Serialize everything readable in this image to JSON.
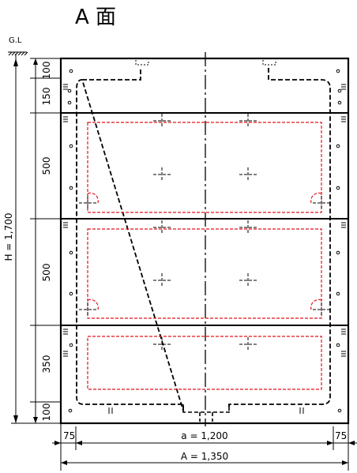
{
  "title": "A 面",
  "gl_label": "G.L",
  "height_dims": [
    "100",
    "150",
    "500",
    "500",
    "350",
    "100"
  ],
  "total_height": "H = 1,700",
  "width_side": "75",
  "inner_width": "a = 1,200",
  "total_width": "A = 1,350",
  "colors": {
    "line": "#000000",
    "hidden": "#000000",
    "red_dashed": "#e0141e"
  }
}
